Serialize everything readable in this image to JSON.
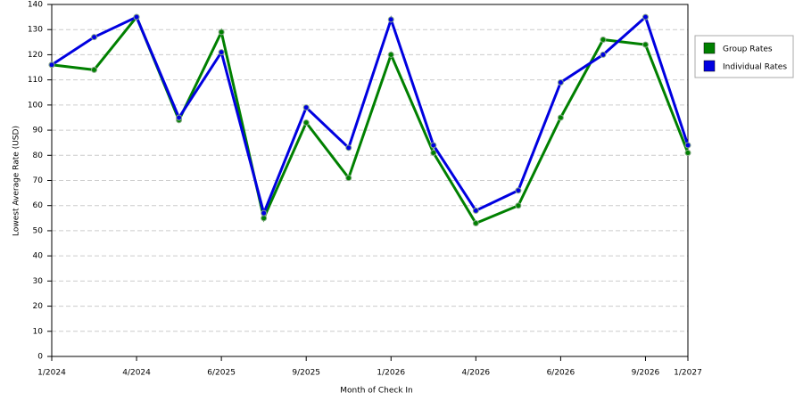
{
  "chart_data": {
    "type": "line",
    "x_label": "Month of Check In",
    "y_label": "Lowest Average Rate (USD)",
    "categories": [
      "1/2024",
      null,
      "4/2024",
      null,
      "6/2025",
      null,
      "9/2025",
      null,
      "1/2026",
      null,
      "4/2026",
      null,
      "6/2026",
      null,
      "9/2026",
      "1/2027"
    ],
    "series": [
      {
        "name": "Group Rates",
        "color": "#008000",
        "values": [
          116,
          114,
          135,
          94,
          129,
          55,
          93,
          71,
          120,
          81,
          53,
          60,
          95,
          126,
          124,
          81
        ]
      },
      {
        "name": "Individual Rates",
        "color": "#0000e0",
        "values": [
          116,
          127,
          135,
          95,
          121,
          57,
          99,
          83,
          134,
          84,
          58,
          66,
          109,
          120,
          135,
          84
        ]
      }
    ],
    "ylim": [
      0,
      140
    ],
    "yticks": [
      0,
      10,
      20,
      30,
      40,
      50,
      60,
      70,
      80,
      90,
      100,
      110,
      120,
      130,
      140
    ],
    "grid": true,
    "legend": "right"
  }
}
